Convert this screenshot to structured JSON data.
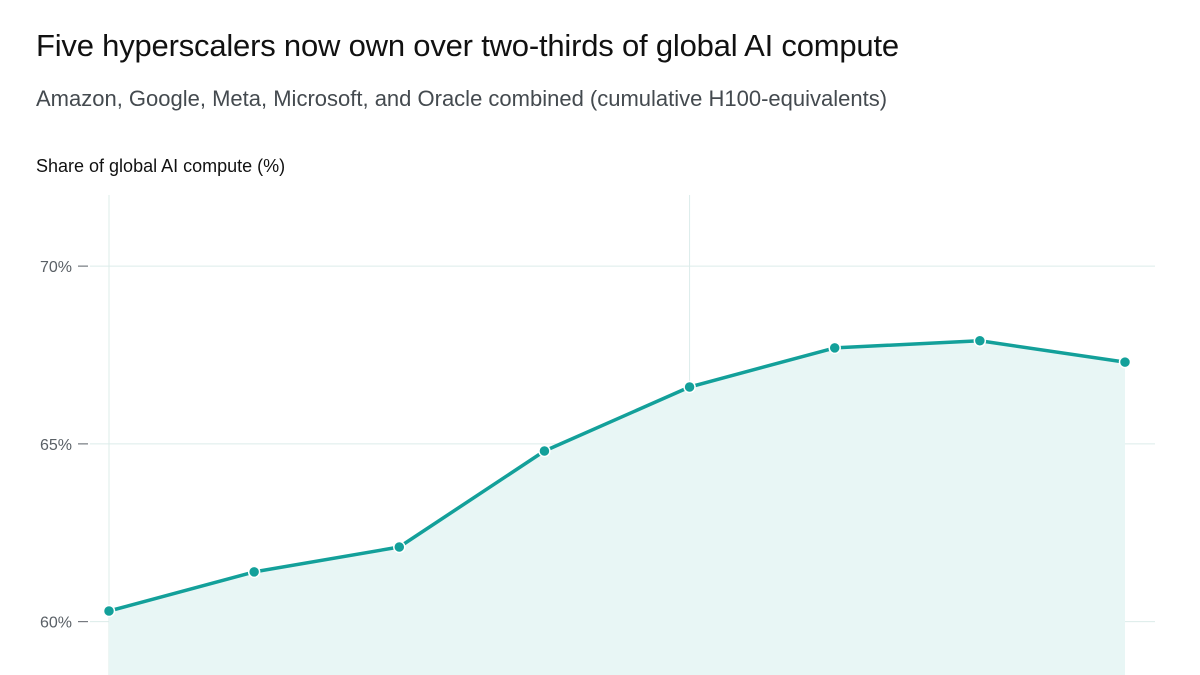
{
  "title": "Five hyperscalers now own over two-thirds of global AI compute",
  "subtitle": "Amazon, Google, Meta, Microsoft, and Oracle combined (cumulative H100-equivalents)",
  "colors": {
    "line": "#13a09a",
    "area": "#e8f6f5",
    "grid": "#dcecea"
  },
  "chart_data": {
    "type": "area",
    "title": "Five hyperscalers now own over two-thirds of global AI compute",
    "subtitle": "Amazon, Google, Meta, Microsoft, and Oracle combined (cumulative H100-equivalents)",
    "ylabel": "Share of global AI compute (%)",
    "xlabel": "",
    "ylim": [
      58.5,
      72
    ],
    "yticks": [
      60,
      65,
      70
    ],
    "ytick_labels": [
      "60%",
      "65%",
      "70%"
    ],
    "grid": true,
    "legend": "none",
    "series": [
      {
        "values": [
          60.3,
          61.4,
          62.1,
          64.8,
          66.6,
          67.7,
          67.9,
          67.3
        ]
      }
    ]
  }
}
